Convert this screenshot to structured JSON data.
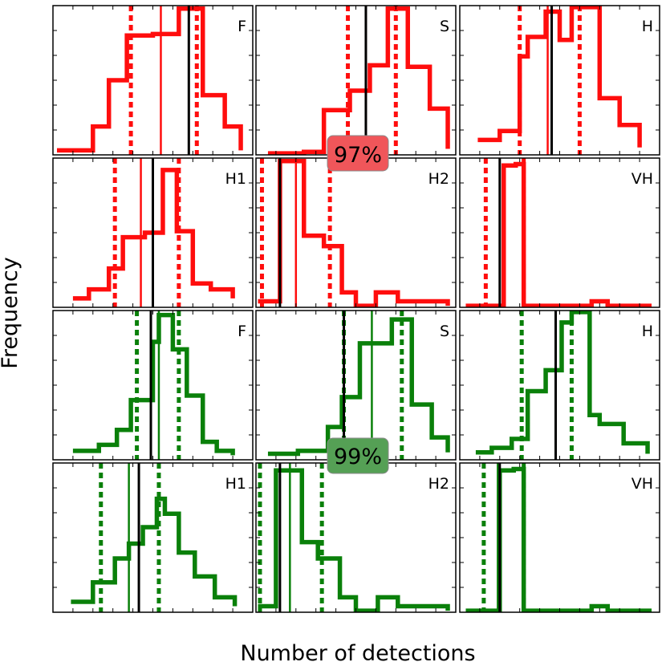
{
  "figure": {
    "ylabel": "Frequency",
    "xlabel": "Number of detections"
  },
  "badges": [
    {
      "text": "97%",
      "color": "#f0565a"
    },
    {
      "text": "99%",
      "color": "#55a055"
    }
  ],
  "colors": {
    "red": "#ff0d0d",
    "green": "#0a800a",
    "black": "#000000"
  },
  "chart_data": [
    {
      "type": "histogram",
      "label": "F",
      "color": "red",
      "edges": [
        0.02,
        0.2,
        0.28,
        0.37,
        0.5,
        0.63,
        0.75,
        0.86,
        0.94
      ],
      "values": [
        0.03,
        0.19,
        0.5,
        0.8,
        0.81,
        0.98,
        0.4,
        0.19,
        0.03
      ],
      "dotted": [
        0.39,
        0.72
      ],
      "thin": 0.54,
      "thick": 0.68
    },
    {
      "type": "histogram",
      "label": "S",
      "color": "red",
      "edges": [
        0.06,
        0.24,
        0.34,
        0.47,
        0.57,
        0.66,
        0.76,
        0.87,
        0.96
      ],
      "values": [
        0.01,
        0.02,
        0.3,
        0.43,
        0.6,
        0.98,
        0.59,
        0.31,
        0.04
      ],
      "dotted": [
        0.46,
        0.7
      ],
      "thin": 0.55,
      "thick": 0.55
    },
    {
      "type": "histogram",
      "label": "H",
      "color": "red",
      "edges": [
        0.09,
        0.2,
        0.3,
        0.34,
        0.43,
        0.5,
        0.56,
        0.7,
        0.8,
        0.9
      ],
      "values": [
        0.1,
        0.16,
        0.66,
        0.79,
        0.96,
        0.77,
        0.99,
        0.38,
        0.2,
        0.05
      ],
      "dotted": [
        0.3,
        0.6
      ],
      "thin": 0.44,
      "thick": 0.46
    },
    {
      "type": "histogram",
      "label": "H1",
      "color": "red",
      "edges": [
        0.1,
        0.18,
        0.28,
        0.35,
        0.46,
        0.55,
        0.62,
        0.7,
        0.79,
        0.9
      ],
      "values": [
        0.06,
        0.12,
        0.26,
        0.47,
        0.5,
        0.92,
        0.51,
        0.16,
        0.12,
        0.06
      ],
      "dotted": [
        0.31,
        0.63
      ],
      "thin": 0.44,
      "thick": 0.5
    },
    {
      "type": "histogram",
      "label": "H2",
      "color": "red",
      "edges": [
        0.01,
        0.12,
        0.24,
        0.34,
        0.43,
        0.5,
        0.6,
        0.71,
        0.96
      ],
      "values": [
        0.04,
        0.98,
        0.48,
        0.41,
        0.1,
        0.01,
        0.1,
        0.04,
        0.01
      ],
      "dotted": [
        0.03,
        0.37
      ],
      "thin": 0.2,
      "thick": 0.12
    },
    {
      "type": "histogram",
      "label": "VH",
      "color": "red",
      "edges": [
        0.03,
        0.18,
        0.22,
        0.28,
        0.32,
        0.58,
        0.66,
        0.74,
        0.96
      ],
      "values": [
        0.01,
        0.01,
        0.95,
        0.96,
        0.01,
        0.01,
        0.04,
        0.01,
        0.01
      ],
      "dotted": [
        0.13,
        0.32
      ],
      "thin": 0.2,
      "thick": 0.2
    },
    {
      "type": "histogram",
      "label": "F",
      "color": "green",
      "edges": [
        0.1,
        0.23,
        0.32,
        0.39,
        0.5,
        0.53,
        0.55,
        0.6,
        0.67,
        0.75,
        0.82,
        0.9
      ],
      "values": [
        0.06,
        0.1,
        0.2,
        0.4,
        0.79,
        0.97,
        0.97,
        0.74,
        0.43,
        0.12,
        0.06,
        0.03
      ],
      "dotted": [
        0.42,
        0.63
      ],
      "thin": 0.53,
      "thick": 0.49
    },
    {
      "type": "histogram",
      "label": "S",
      "color": "green",
      "edges": [
        0.06,
        0.21,
        0.36,
        0.43,
        0.52,
        0.68,
        0.78,
        0.88,
        0.96
      ],
      "values": [
        0.04,
        0.06,
        0.22,
        0.42,
        0.78,
        0.94,
        0.37,
        0.15,
        0.05
      ],
      "dotted": [
        0.44,
        0.73
      ],
      "thin": 0.58,
      "thick": 0.44
    },
    {
      "type": "histogram",
      "label": "H",
      "color": "green",
      "edges": [
        0.08,
        0.16,
        0.26,
        0.34,
        0.43,
        0.51,
        0.56,
        0.65,
        0.7,
        0.82,
        0.94
      ],
      "values": [
        0.05,
        0.08,
        0.14,
        0.46,
        0.6,
        0.92,
        0.99,
        0.3,
        0.24,
        0.11,
        0.04
      ],
      "dotted": [
        0.31,
        0.56
      ],
      "thin": 0.48,
      "thick": 0.48
    },
    {
      "type": "histogram",
      "label": "H1",
      "color": "green",
      "edges": [
        0.09,
        0.2,
        0.31,
        0.38,
        0.45,
        0.52,
        0.56,
        0.63,
        0.71,
        0.81,
        0.91
      ],
      "values": [
        0.07,
        0.2,
        0.36,
        0.46,
        0.57,
        0.76,
        0.66,
        0.4,
        0.24,
        0.1,
        0.04
      ],
      "dotted": [
        0.24,
        0.53
      ],
      "thin": 0.38,
      "thick": 0.43
    },
    {
      "type": "histogram",
      "label": "H2",
      "color": "green",
      "edges": [
        0.01,
        0.1,
        0.23,
        0.31,
        0.42,
        0.5,
        0.61,
        0.71,
        0.96
      ],
      "values": [
        0.04,
        0.95,
        0.47,
        0.36,
        0.1,
        0.01,
        0.1,
        0.04,
        0.01
      ],
      "dotted": [
        0.02,
        0.33
      ],
      "thin": 0.17,
      "thick": 0.12
    },
    {
      "type": "histogram",
      "label": "VH",
      "color": "green",
      "edges": [
        0.03,
        0.18,
        0.2,
        0.27,
        0.32,
        0.58,
        0.66,
        0.74,
        0.96
      ],
      "values": [
        0.01,
        0.01,
        0.95,
        0.96,
        0.01,
        0.01,
        0.04,
        0.01,
        0.01
      ],
      "dotted": [
        0.12,
        0.32
      ],
      "thin": 0.19,
      "thick": 0.2
    }
  ]
}
